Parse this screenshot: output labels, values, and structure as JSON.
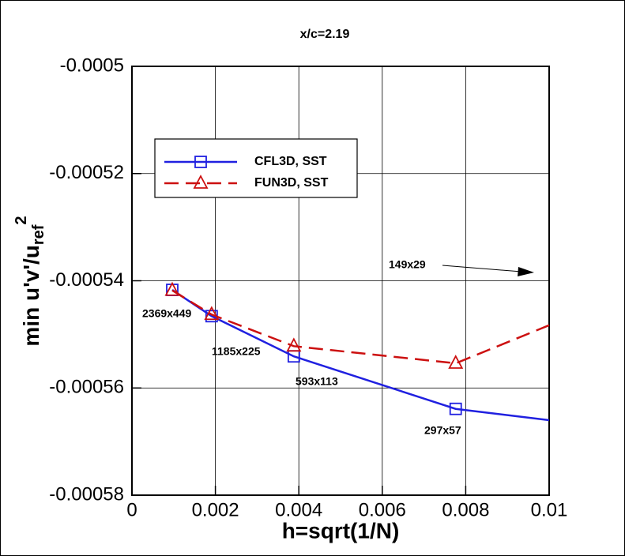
{
  "chart_data": {
    "type": "line",
    "title": "x/c=2.19",
    "xlabel": "h=sqrt(1/N)",
    "ylabel": {
      "text": "min u'v'/u",
      "sub": "ref",
      "sup": "2"
    },
    "xlim": [
      0,
      0.01
    ],
    "xticks": [
      0,
      0.002,
      0.004,
      0.006,
      0.008,
      0.01
    ],
    "ylim": [
      -0.00058,
      -0.0005
    ],
    "yticks": [
      -0.0005,
      -0.00052,
      -0.00054,
      -0.00056,
      -0.00058
    ],
    "grid": true,
    "legend": "upper left",
    "series": [
      {
        "name": "CFL3D, SST",
        "color": "#2020e0",
        "dash": "solid",
        "marker": "square",
        "x": [
          0.000966,
          0.00191,
          0.00388,
          0.00776,
          0.01
        ],
        "values": [
          -0.0005417,
          -0.0005466,
          -0.0005541,
          -0.0005639,
          -0.000566
        ],
        "markers": [
          true,
          true,
          true,
          true,
          false
        ]
      },
      {
        "name": "FUN3D, SST",
        "color": "#cc1010",
        "dash": "dashed",
        "marker": "triangle",
        "x": [
          0.000966,
          0.00191,
          0.00388,
          0.00776,
          0.01
        ],
        "values": [
          -0.0005418,
          -0.0005463,
          -0.0005522,
          -0.0005554,
          -0.0005483
        ],
        "markers": [
          true,
          true,
          true,
          true,
          false
        ]
      }
    ],
    "annotations": [
      "2369x449",
      "1185x225",
      "593x113",
      "297x57",
      "149x29"
    ]
  }
}
